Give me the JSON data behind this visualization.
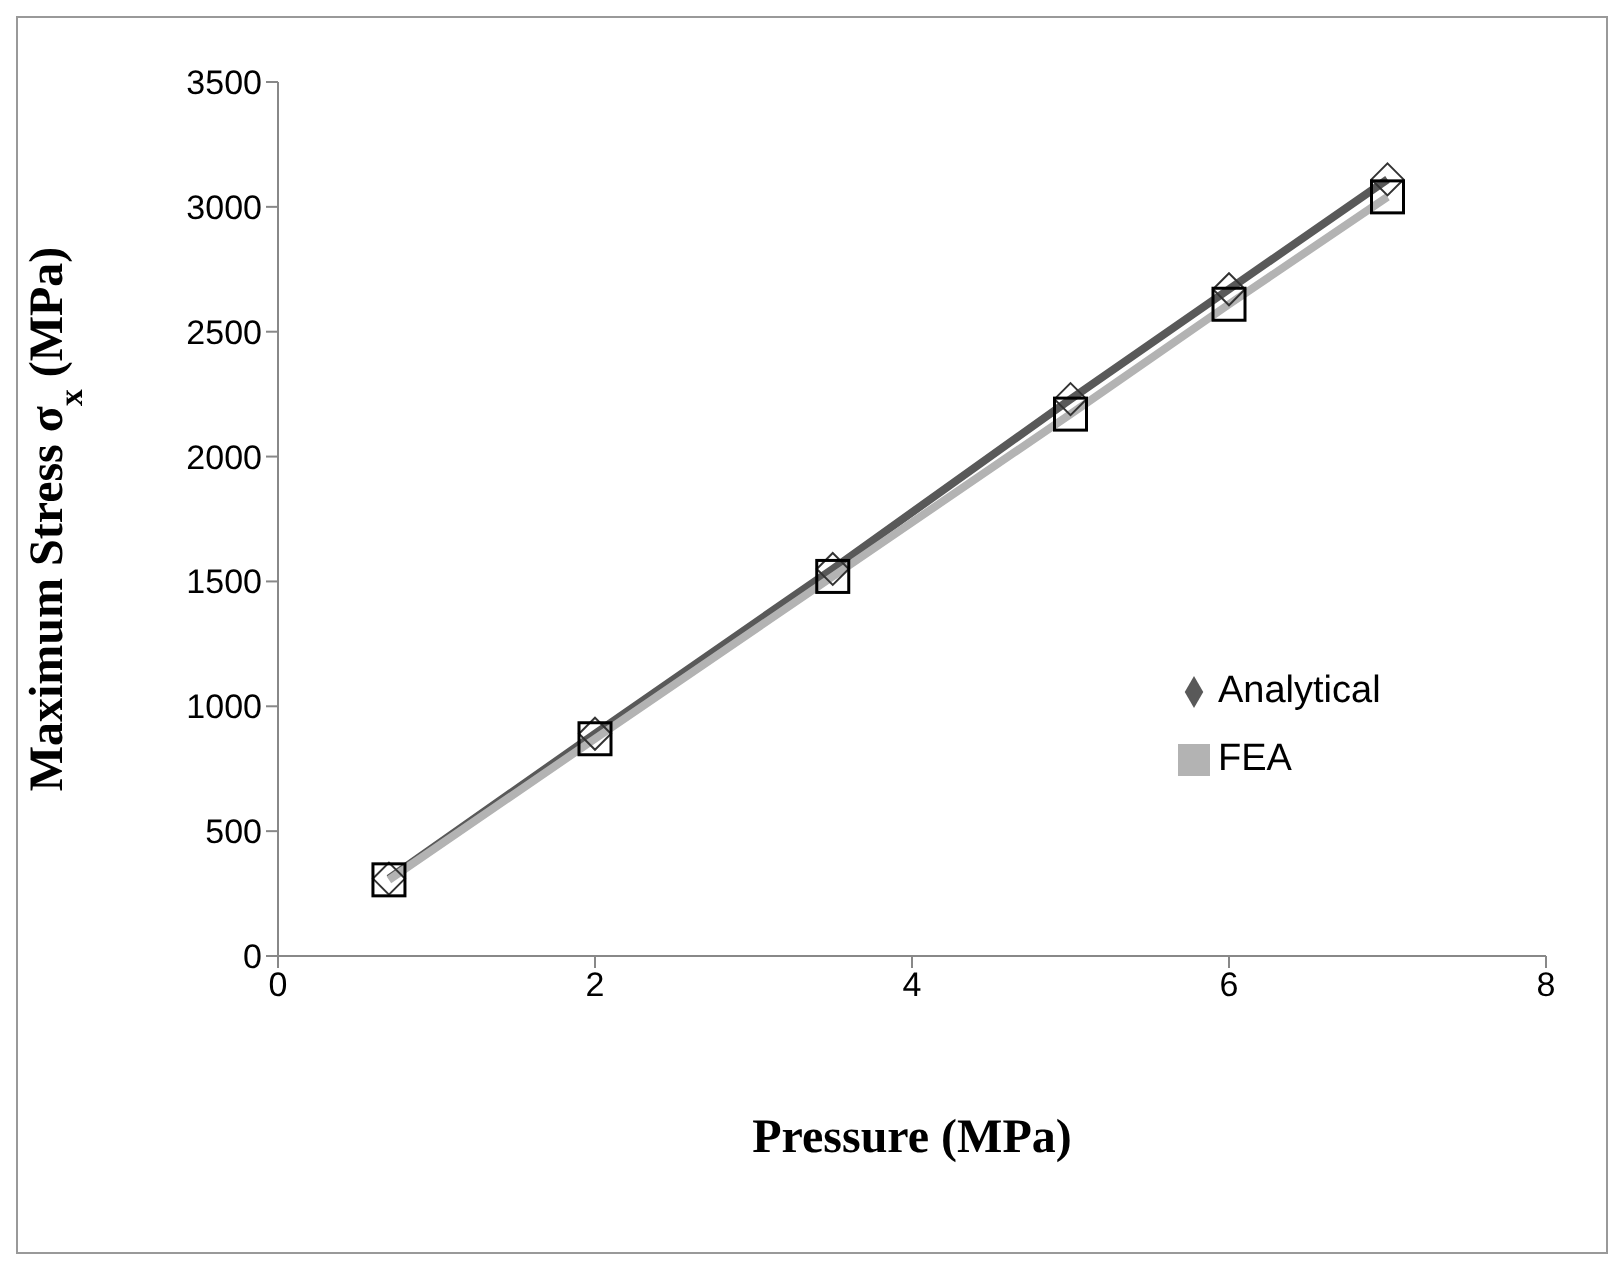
{
  "chart_data": {
    "type": "line",
    "xlabel": "Pressure (MPa)",
    "ylabel": "Maximum Stress σ$_{x}$ (MPa)",
    "x": [
      0.7,
      2,
      3.5,
      5,
      6,
      7
    ],
    "series": [
      {
        "name": "Analytical",
        "color": "#595959",
        "marker": "diamond",
        "values": [
          310,
          890,
          1550,
          2230,
          2670,
          3110
        ]
      },
      {
        "name": "FEA",
        "color": "#b3b3b3",
        "marker": "square",
        "values": [
          305,
          870,
          1520,
          2170,
          2610,
          3040
        ]
      }
    ],
    "xlim": [
      0,
      8
    ],
    "xticks": [
      0,
      2,
      4,
      6,
      8
    ],
    "ylim": [
      0,
      3500
    ],
    "yticks": [
      0,
      500,
      1000,
      1500,
      2000,
      2500,
      3000,
      3500
    ],
    "grid": false,
    "legend": "right",
    "line_style": "solid"
  }
}
